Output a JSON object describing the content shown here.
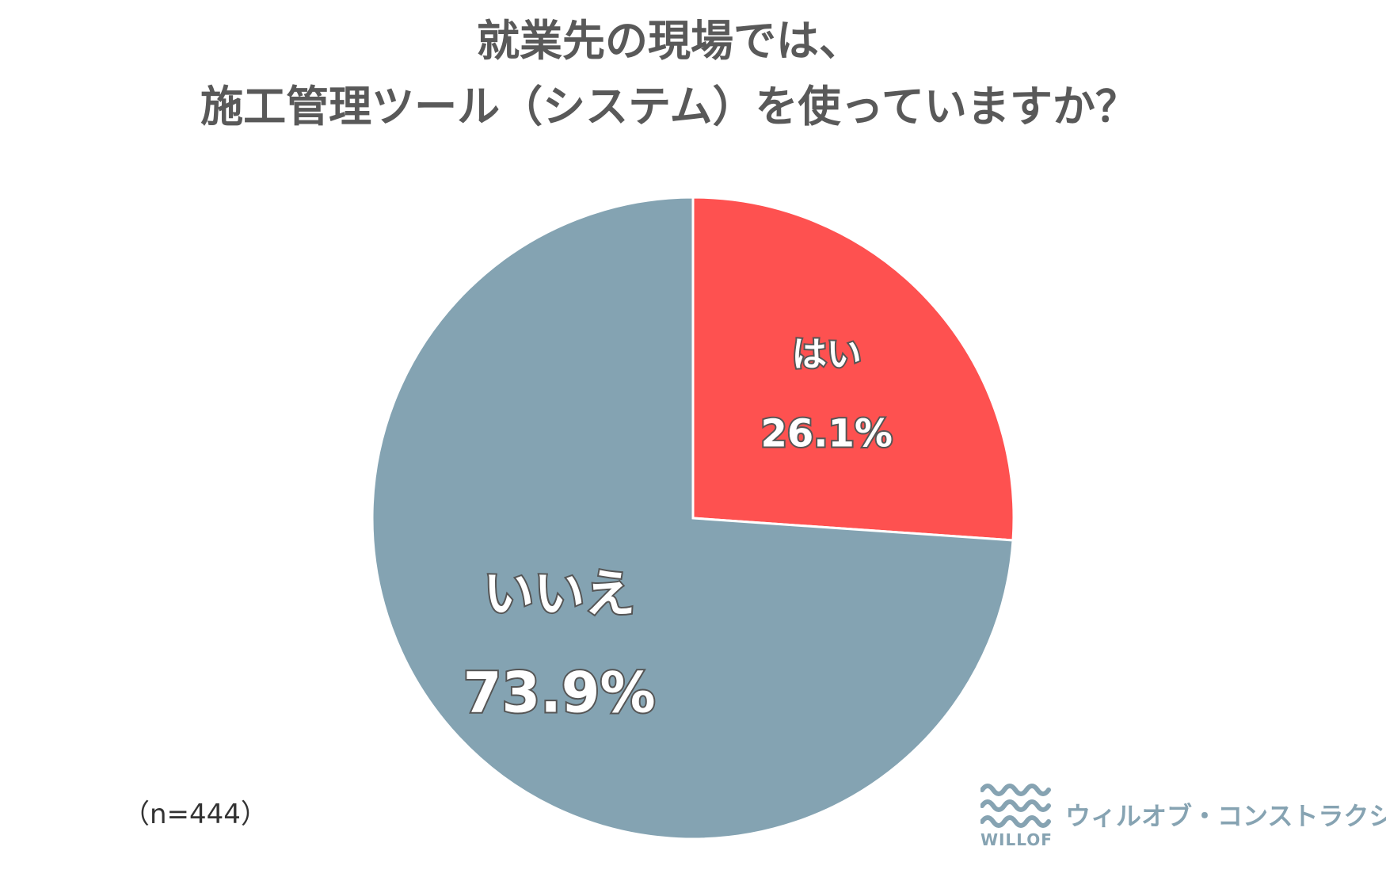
{
  "chart_data": {
    "type": "pie",
    "title_lines": [
      "就業先の現場では、",
      "施工管理ツール（システム）を使っていますか？"
    ],
    "slices": [
      {
        "label": "はい",
        "value": 26.1,
        "value_label": "26.1%",
        "color": "#fe5150"
      },
      {
        "label": "いいえ",
        "value": 73.9,
        "value_label": "73.9%",
        "color": "#84a3b2"
      }
    ],
    "start": "12 o'clock, clockwise",
    "sample_size": "（n=444）"
  },
  "branding": {
    "logo_text": "WILLOF",
    "company": "ウィルオブ・コンストラクション",
    "color": "#86a3b2"
  }
}
